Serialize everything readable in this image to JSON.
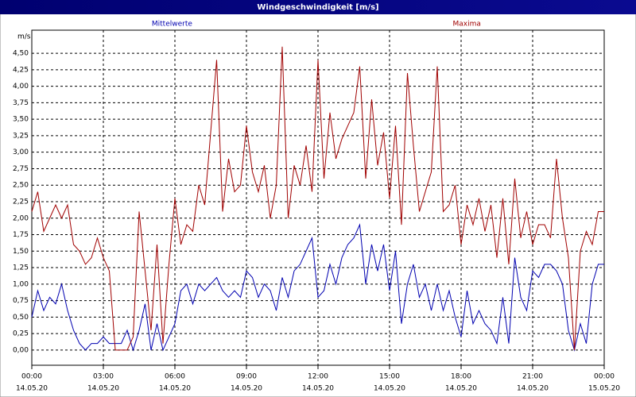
{
  "chart_data": {
    "type": "line",
    "title": "Windgeschwindigkeit [m/s]",
    "ylabel": "m/s",
    "x": [
      0,
      0.25,
      0.5,
      0.75,
      1,
      1.25,
      1.5,
      1.75,
      2,
      2.25,
      2.5,
      2.75,
      3,
      3.25,
      3.5,
      3.75,
      4,
      4.25,
      4.5,
      4.75,
      5,
      5.25,
      5.5,
      5.75,
      6,
      6.25,
      6.5,
      6.75,
      7,
      7.25,
      7.5,
      7.75,
      8,
      8.25,
      8.5,
      8.75,
      9,
      9.25,
      9.5,
      9.75,
      10,
      10.25,
      10.5,
      10.75,
      11,
      11.25,
      11.5,
      11.75,
      12,
      12.25,
      12.5,
      12.75,
      13,
      13.25,
      13.5,
      13.75,
      14,
      14.25,
      14.5,
      14.75,
      15,
      15.25,
      15.5,
      15.75,
      16,
      16.25,
      16.5,
      16.75,
      17,
      17.25,
      17.5,
      17.75,
      18,
      18.25,
      18.5,
      18.75,
      19,
      19.25,
      19.5,
      19.75,
      20,
      20.25,
      20.5,
      20.75,
      21,
      21.25,
      21.5,
      21.75,
      22,
      22.25,
      22.5,
      22.75,
      23,
      23.25,
      23.5,
      23.75,
      24
    ],
    "series": [
      {
        "name": "Mittelwerte",
        "color": "#0000b0",
        "values": [
          0.5,
          0.9,
          0.6,
          0.8,
          0.7,
          1.0,
          0.6,
          0.3,
          0.1,
          0.0,
          0.1,
          0.1,
          0.2,
          0.1,
          0.1,
          0.1,
          0.3,
          0.0,
          0.3,
          0.7,
          0.0,
          0.4,
          0.0,
          0.2,
          0.4,
          0.9,
          1.0,
          0.7,
          1.0,
          0.9,
          1.0,
          1.1,
          0.9,
          0.8,
          0.9,
          0.8,
          1.2,
          1.1,
          0.8,
          1.0,
          0.9,
          0.6,
          1.1,
          0.8,
          1.2,
          1.3,
          1.5,
          1.7,
          0.8,
          0.9,
          1.3,
          1.0,
          1.4,
          1.6,
          1.7,
          1.9,
          1.0,
          1.6,
          1.2,
          1.6,
          0.9,
          1.5,
          0.4,
          1.0,
          1.3,
          0.8,
          1.0,
          0.6,
          1.0,
          0.6,
          0.9,
          0.5,
          0.2,
          0.9,
          0.4,
          0.6,
          0.4,
          0.3,
          0.1,
          0.8,
          0.1,
          1.4,
          0.8,
          0.6,
          1.2,
          1.1,
          1.3,
          1.3,
          1.2,
          1.0,
          0.3,
          0.0,
          0.4,
          0.1,
          1.0,
          1.3,
          1.3
        ]
      },
      {
        "name": "Maxima",
        "color": "#a00000",
        "values": [
          2.1,
          2.4,
          1.8,
          2.0,
          2.2,
          2.0,
          2.2,
          1.6,
          1.5,
          1.3,
          1.4,
          1.7,
          1.4,
          1.2,
          0,
          0,
          0,
          0.2,
          2.1,
          1.2,
          0.3,
          1.6,
          0.1,
          1.3,
          2.3,
          1.6,
          1.9,
          1.8,
          2.5,
          2.2,
          3.3,
          4.4,
          2.1,
          2.9,
          2.4,
          2.5,
          3.4,
          2.7,
          2.4,
          2.8,
          2.0,
          2.5,
          4.6,
          2.0,
          2.8,
          2.5,
          3.1,
          2.4,
          4.4,
          2.6,
          3.6,
          2.9,
          3.2,
          3.4,
          3.6,
          4.3,
          2.6,
          3.8,
          2.8,
          3.3,
          2.3,
          3.4,
          1.9,
          4.2,
          3.1,
          2.1,
          2.4,
          2.7,
          4.3,
          2.1,
          2.2,
          2.5,
          1.6,
          2.2,
          1.9,
          2.3,
          1.8,
          2.2,
          1.4,
          2.3,
          1.3,
          2.6,
          1.7,
          2.1,
          1.6,
          1.9,
          1.9,
          1.7,
          2.9,
          2.0,
          1.4,
          0,
          1.5,
          1.8,
          1.6,
          2.1,
          2.1
        ]
      }
    ],
    "xlim": [
      0,
      24
    ],
    "xticks": [
      {
        "value": 0,
        "label": "00:00"
      },
      {
        "value": 3,
        "label": "03:00"
      },
      {
        "value": 6,
        "label": "06:00"
      },
      {
        "value": 9,
        "label": "09:00"
      },
      {
        "value": 12,
        "label": "12:00"
      },
      {
        "value": 15,
        "label": "15:00"
      },
      {
        "value": 18,
        "label": "18:00"
      },
      {
        "value": 21,
        "label": "21:00"
      },
      {
        "value": 24,
        "label": "00:00"
      }
    ],
    "xtick_dates": [
      "14.05.20",
      "14.05.20",
      "14.05.20",
      "14.05.20",
      "14.05.20",
      "14.05.20",
      "14.05.20",
      "14.05.20",
      "15.05.20"
    ],
    "ylim": [
      -0.23,
      4.85
    ],
    "yticks": [
      {
        "value": 0,
        "label": "0,00"
      },
      {
        "value": 0.25,
        "label": "0,25"
      },
      {
        "value": 0.5,
        "label": "0,50"
      },
      {
        "value": 0.75,
        "label": "0,75"
      },
      {
        "value": 1,
        "label": "1,00"
      },
      {
        "value": 1.25,
        "label": "1,25"
      },
      {
        "value": 1.5,
        "label": "1,50"
      },
      {
        "value": 1.75,
        "label": "1,75"
      },
      {
        "value": 2,
        "label": "2,00"
      },
      {
        "value": 2.25,
        "label": "2,25"
      },
      {
        "value": 2.5,
        "label": "2,50"
      },
      {
        "value": 2.75,
        "label": "2,75"
      },
      {
        "value": 3,
        "label": "3,00"
      },
      {
        "value": 3.25,
        "label": "3,25"
      },
      {
        "value": 3.5,
        "label": "3,50"
      },
      {
        "value": 3.75,
        "label": "3,75"
      },
      {
        "value": 4,
        "label": "4,00"
      },
      {
        "value": 4.25,
        "label": "4,25"
      },
      {
        "value": 4.5,
        "label": "4,50"
      }
    ],
    "grid": true
  }
}
